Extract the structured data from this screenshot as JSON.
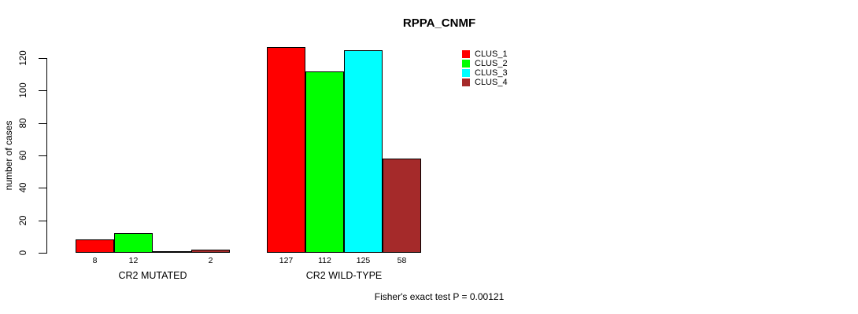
{
  "chart_data": {
    "type": "bar",
    "title": "RPPA_CNMF",
    "ylabel": "number of cases",
    "categories": [
      "CR2 MUTATED",
      "CR2 WILD-TYPE"
    ],
    "series": [
      {
        "name": "CLUS_1",
        "color": "#ff0000",
        "values": [
          8,
          127
        ]
      },
      {
        "name": "CLUS_2",
        "color": "#00ff00",
        "values": [
          12,
          112
        ]
      },
      {
        "name": "CLUS_3",
        "color": "#00ffff",
        "values": [
          0,
          125
        ]
      },
      {
        "name": "CLUS_4",
        "color": "#a52a2a",
        "values": [
          2,
          58
        ]
      }
    ],
    "bar_value_labels": [
      [
        "8",
        "12",
        "",
        "2"
      ],
      [
        "127",
        "112",
        "125",
        "58"
      ]
    ],
    "yticks": [
      0,
      20,
      40,
      60,
      80,
      100,
      120
    ],
    "ylim": [
      0,
      127
    ],
    "grid": false,
    "legend": {
      "position": "top-right",
      "entries": [
        "CLUS_1",
        "CLUS_2",
        "CLUS_3",
        "CLUS_4"
      ]
    },
    "footnote": "Fisher's exact test P = 0.00121"
  }
}
